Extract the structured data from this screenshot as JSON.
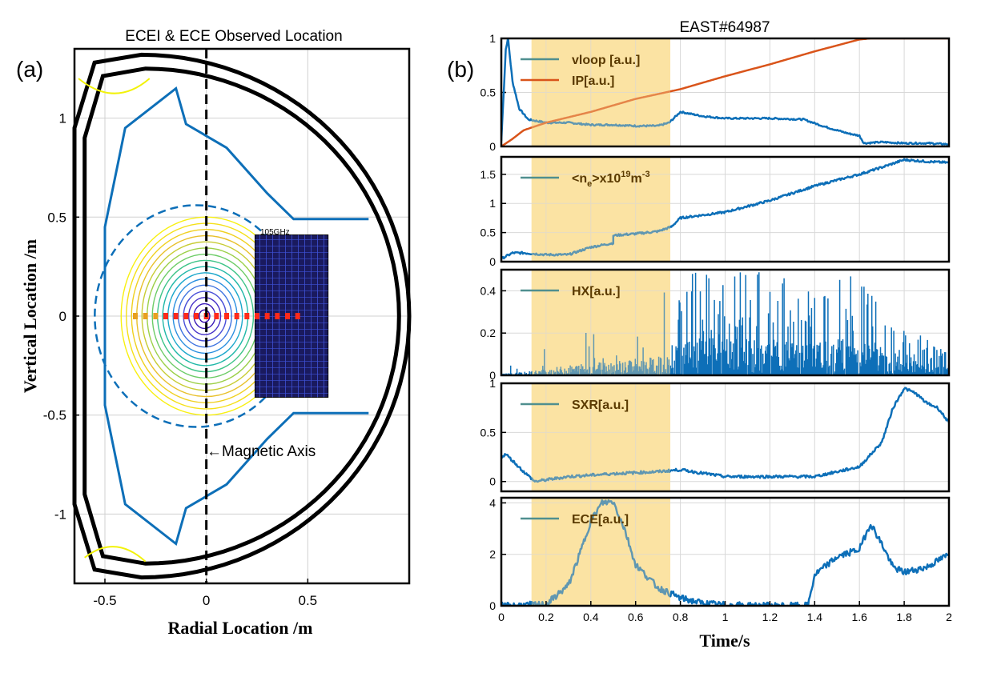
{
  "panel_a": {
    "panel_label": "(a)",
    "title": "ECEI & ECE Observed Location",
    "annotation_magnetic_axis": "←Magnetic Axis",
    "annotation_freq": "105GHz",
    "colors": {
      "wall": "#000000",
      "limiter": "#0d6fb8",
      "dashed_boundary": "#0d6fb8",
      "rf_antenna": "#f2f20a",
      "ecei_box": "#1a1a5e",
      "ece_channels": "#ff2a1a"
    }
  },
  "panel_b": {
    "panel_label": "(b)",
    "title": "EAST#64987",
    "shade_color": "#fbe3a3",
    "line_color_blue": "#0d6fb8",
    "line_color_orange": "#d9541a",
    "line_color_teal": "#4f8f8f"
  },
  "chart_data": [
    {
      "type": "line",
      "title": "ECEI & ECE Observed Location",
      "xlabel": "Radial Location  /m",
      "ylabel": "Vertical Location  /m",
      "xlim": [
        -0.65,
        1.0
      ],
      "ylim": [
        -1.35,
        1.35
      ],
      "xticks": [
        -0.5,
        0,
        0.5
      ],
      "yticks": [
        -1,
        -0.5,
        0,
        0.5,
        1
      ],
      "xtick_labels": [
        "-0.5",
        "0",
        "0.5"
      ],
      "ytick_labels": [
        "-1",
        "-0.5",
        "0",
        "0.5",
        "1"
      ],
      "grid": true,
      "magnetic_axis_r": 0,
      "series": [
        {
          "name": "outer wall",
          "x": [
            -0.3,
            0.1,
            0.5,
            0.8,
            0.95,
            1.0,
            0.95,
            0.8,
            0.5,
            0.1,
            -0.3,
            -0.55,
            -0.65,
            -0.65,
            -0.55,
            -0.3
          ],
          "y": [
            1.32,
            1.3,
            1.15,
            0.85,
            0.45,
            0.0,
            -0.45,
            -0.85,
            -1.15,
            -1.3,
            -1.3,
            -1.15,
            -0.9,
            0.9,
            1.15,
            1.32
          ]
        },
        {
          "name": "limiter",
          "x": [
            0.8,
            0.43,
            0.3,
            0.1,
            -0.1,
            -0.15,
            -0.4,
            -0.42,
            -0.5,
            -0.5,
            -0.42,
            -0.4,
            -0.15,
            -0.1,
            0.1,
            0.3,
            0.43,
            0.8
          ],
          "y": [
            0.49,
            0.49,
            0.62,
            0.85,
            0.97,
            1.15,
            0.95,
            0.85,
            0.45,
            -0.45,
            -0.85,
            -0.95,
            -1.15,
            -0.97,
            -0.85,
            -0.62,
            -0.49,
            -0.49
          ]
        },
        {
          "name": "ECE channels",
          "r": [
            -0.35,
            -0.3,
            -0.25,
            -0.2,
            -0.15,
            -0.1,
            -0.05,
            0.0,
            0.05,
            0.1,
            0.15,
            0.2,
            0.25,
            0.3,
            0.35,
            0.4,
            0.45
          ]
        }
      ]
    },
    {
      "type": "line",
      "title": "EAST#64987",
      "xlabel": "Time/s",
      "xlim": [
        0,
        2
      ],
      "xticks": [
        0,
        0.2,
        0.4,
        0.6,
        0.8,
        1,
        1.2,
        1.4,
        1.6,
        1.8,
        2
      ],
      "xtick_labels": [
        "0",
        "0.2",
        "0.4",
        "0.6",
        "0.8",
        "1",
        "1.2",
        "1.4",
        "1.6",
        "1.8",
        "2"
      ],
      "shaded_interval": [
        0.135,
        0.755
      ],
      "grid": true,
      "subplots": [
        {
          "ylim": [
            0,
            1
          ],
          "yticks": [
            0,
            0.5,
            1
          ],
          "ytick_labels": [
            "0",
            "0.5",
            "1"
          ],
          "legend_placement": "top-left",
          "series": [
            {
              "name": "vloop [a.u.]",
              "x": [
                0,
                0.02,
                0.03,
                0.05,
                0.08,
                0.12,
                0.2,
                0.3,
                0.4,
                0.5,
                0.6,
                0.7,
                0.75,
                0.8,
                0.9,
                1.0,
                1.2,
                1.35,
                1.45,
                1.55,
                1.6,
                1.62,
                1.7,
                1.8,
                1.9,
                2.0
              ],
              "y": [
                0.05,
                0.9,
                1.0,
                0.6,
                0.35,
                0.25,
                0.22,
                0.22,
                0.2,
                0.2,
                0.19,
                0.19,
                0.22,
                0.32,
                0.28,
                0.26,
                0.26,
                0.25,
                0.18,
                0.12,
                0.1,
                0.03,
                0.04,
                0.03,
                0.03,
                0.02
              ]
            },
            {
              "name": "IP[a.u.]",
              "x": [
                0,
                0.05,
                0.1,
                0.2,
                0.4,
                0.6,
                0.8,
                1.0,
                1.2,
                1.4,
                1.6,
                1.65,
                1.8,
                2.0
              ],
              "y": [
                0.0,
                0.07,
                0.15,
                0.22,
                0.32,
                0.44,
                0.53,
                0.65,
                0.76,
                0.88,
                0.99,
                1.0,
                1.0,
                1.0
              ]
            }
          ]
        },
        {
          "ylim": [
            0,
            1.8
          ],
          "yticks": [
            0,
            0.5,
            1,
            1.5
          ],
          "ytick_labels": [
            "0",
            "0.5",
            "1",
            "1.5"
          ],
          "legend_placement": "top-left",
          "legend_text": {
            "prefix": "<n",
            "sub": "e",
            "mid": ">x10",
            "sup1": "19",
            "unit": "m",
            "sup2": "-3"
          },
          "series": [
            {
              "name": "<ne>x10^19m^-3",
              "x": [
                0,
                0.05,
                0.1,
                0.2,
                0.3,
                0.4,
                0.5,
                0.5,
                0.6,
                0.7,
                0.76,
                0.8,
                1.0,
                1.2,
                1.4,
                1.6,
                1.7,
                1.8,
                1.9,
                2.0
              ],
              "y": [
                0.05,
                0.15,
                0.15,
                0.12,
                0.12,
                0.25,
                0.32,
                0.45,
                0.48,
                0.52,
                0.6,
                0.75,
                0.85,
                1.05,
                1.3,
                1.5,
                1.62,
                1.75,
                1.72,
                1.7
              ]
            }
          ]
        },
        {
          "ylim": [
            0,
            0.5
          ],
          "yticks": [
            0,
            0.2,
            0.4
          ],
          "ytick_labels": [
            "0",
            "0.2",
            "0.4"
          ],
          "legend_placement": "top-left",
          "series": [
            {
              "name": "HX[a.u.]",
              "x": [
                0.0,
                0.1,
                0.2,
                0.3,
                0.4,
                0.5,
                0.6,
                0.7,
                0.76,
                0.8,
                1.0,
                1.2,
                1.4,
                1.6,
                1.8,
                2.0
              ],
              "y": [
                0.01,
                0.02,
                0.04,
                0.06,
                0.08,
                0.09,
                0.1,
                0.11,
                0.12,
                0.5,
                0.5,
                0.5,
                0.45,
                0.5,
                0.25,
                0.1
              ]
            }
          ]
        },
        {
          "ylim": [
            -0.1,
            1
          ],
          "yticks": [
            0,
            0.5,
            1
          ],
          "ytick_labels": [
            "0",
            "0.5",
            "1"
          ],
          "legend_placement": "top-left",
          "series": [
            {
              "name": "SXR[a.u.]",
              "x": [
                0,
                0.02,
                0.1,
                0.15,
                0.3,
                0.5,
                0.7,
                0.8,
                1.0,
                1.2,
                1.4,
                1.5,
                1.6,
                1.7,
                1.75,
                1.8,
                1.85,
                1.9,
                1.95,
                2.0
              ],
              "y": [
                0.25,
                0.28,
                0.1,
                0.0,
                0.05,
                0.08,
                0.1,
                0.12,
                0.05,
                0.05,
                0.05,
                0.1,
                0.15,
                0.4,
                0.75,
                0.95,
                0.9,
                0.8,
                0.75,
                0.6
              ]
            }
          ]
        },
        {
          "ylim": [
            0,
            4.2
          ],
          "yticks": [
            0,
            2,
            4
          ],
          "ytick_labels": [
            "0",
            "2",
            "4"
          ],
          "legend_placement": "top-left",
          "series": [
            {
              "name": "ECE[a.u.]",
              "x": [
                0,
                0.2,
                0.3,
                0.35,
                0.4,
                0.45,
                0.5,
                0.55,
                0.6,
                0.7,
                0.8,
                0.9,
                1.0,
                1.2,
                1.37,
                1.4,
                1.5,
                1.6,
                1.65,
                1.7,
                1.75,
                1.8,
                1.9,
                2.0
              ],
              "y": [
                0,
                0.05,
                0.8,
                2.0,
                3.3,
                4.0,
                4.05,
                3.0,
                1.6,
                0.7,
                0.3,
                0.1,
                0.03,
                0.0,
                0.0,
                1.2,
                1.9,
                2.2,
                3.2,
                2.4,
                1.5,
                1.3,
                1.5,
                2.0
              ]
            }
          ]
        }
      ]
    }
  ]
}
